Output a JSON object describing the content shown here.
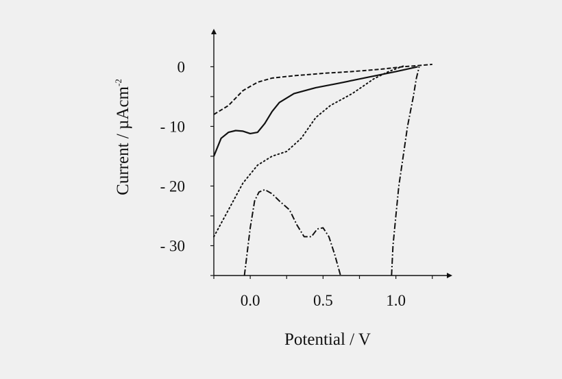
{
  "chart_data": {
    "type": "line",
    "title": "",
    "xlabel": "Potential / V",
    "ylabel_main": "Current / µAcm",
    "ylabel_sup": "-2",
    "xlim": [
      -0.25,
      1.35
    ],
    "ylim": [
      -35,
      2
    ],
    "x_ticks": [
      0.0,
      0.5,
      1.0
    ],
    "x_tick_labels": [
      "0.0",
      "0.5",
      "1.0"
    ],
    "y_ticks": [
      0,
      -10,
      -20,
      -30
    ],
    "y_tick_labels": [
      "0",
      "- 10",
      "- 20",
      "- 30"
    ],
    "grid": false,
    "legend": "none",
    "series": [
      {
        "style": "dashed",
        "points": [
          [
            -0.25,
            -8.0
          ],
          [
            -0.15,
            -6.5
          ],
          [
            -0.05,
            -4.0
          ],
          [
            0.05,
            -2.6
          ],
          [
            0.15,
            -1.9
          ],
          [
            0.3,
            -1.5
          ],
          [
            0.5,
            -1.1
          ],
          [
            0.7,
            -0.8
          ],
          [
            0.9,
            -0.4
          ],
          [
            1.05,
            0.0
          ],
          [
            1.15,
            0.2
          ],
          [
            1.25,
            0.4
          ]
        ]
      },
      {
        "style": "solid",
        "points": [
          [
            -0.25,
            -15.0
          ],
          [
            -0.2,
            -12.0
          ],
          [
            -0.15,
            -11.0
          ],
          [
            -0.1,
            -10.7
          ],
          [
            -0.05,
            -10.8
          ],
          [
            0.0,
            -11.2
          ],
          [
            0.05,
            -11.0
          ],
          [
            0.1,
            -9.5
          ],
          [
            0.15,
            -7.5
          ],
          [
            0.2,
            -6.0
          ],
          [
            0.3,
            -4.5
          ],
          [
            0.45,
            -3.5
          ],
          [
            0.6,
            -2.8
          ],
          [
            0.8,
            -1.8
          ],
          [
            1.0,
            -0.8
          ],
          [
            1.15,
            0.0
          ]
        ]
      },
      {
        "style": "dotted",
        "points": [
          [
            -0.25,
            -28.5
          ],
          [
            -0.15,
            -24.0
          ],
          [
            -0.05,
            -19.5
          ],
          [
            0.05,
            -16.5
          ],
          [
            0.15,
            -15.0
          ],
          [
            0.25,
            -14.2
          ],
          [
            0.35,
            -12.0
          ],
          [
            0.45,
            -8.5
          ],
          [
            0.55,
            -6.5
          ],
          [
            0.7,
            -4.5
          ],
          [
            0.85,
            -2.0
          ],
          [
            0.95,
            -0.8
          ],
          [
            1.05,
            0.1
          ]
        ]
      },
      {
        "style": "dash-dot",
        "points": [
          [
            -0.04,
            -35.0
          ],
          [
            0.0,
            -27.0
          ],
          [
            0.03,
            -22.5
          ],
          [
            0.06,
            -21.0
          ],
          [
            0.1,
            -20.6
          ],
          [
            0.15,
            -21.3
          ],
          [
            0.2,
            -22.5
          ],
          [
            0.27,
            -24.0
          ],
          [
            0.32,
            -26.5
          ],
          [
            0.37,
            -28.5
          ],
          [
            0.42,
            -28.5
          ],
          [
            0.46,
            -27.2
          ],
          [
            0.5,
            -27.0
          ],
          [
            0.54,
            -28.5
          ],
          [
            0.58,
            -31.5
          ],
          [
            0.62,
            -35.0
          ]
        ]
      },
      {
        "style": "dash-dot",
        "points": [
          [
            0.97,
            -35.0
          ],
          [
            0.98,
            -30.0
          ],
          [
            1.0,
            -25.0
          ],
          [
            1.02,
            -20.0
          ],
          [
            1.05,
            -15.0
          ],
          [
            1.08,
            -10.0
          ],
          [
            1.12,
            -5.0
          ],
          [
            1.14,
            -2.0
          ],
          [
            1.16,
            0.0
          ]
        ]
      }
    ]
  }
}
